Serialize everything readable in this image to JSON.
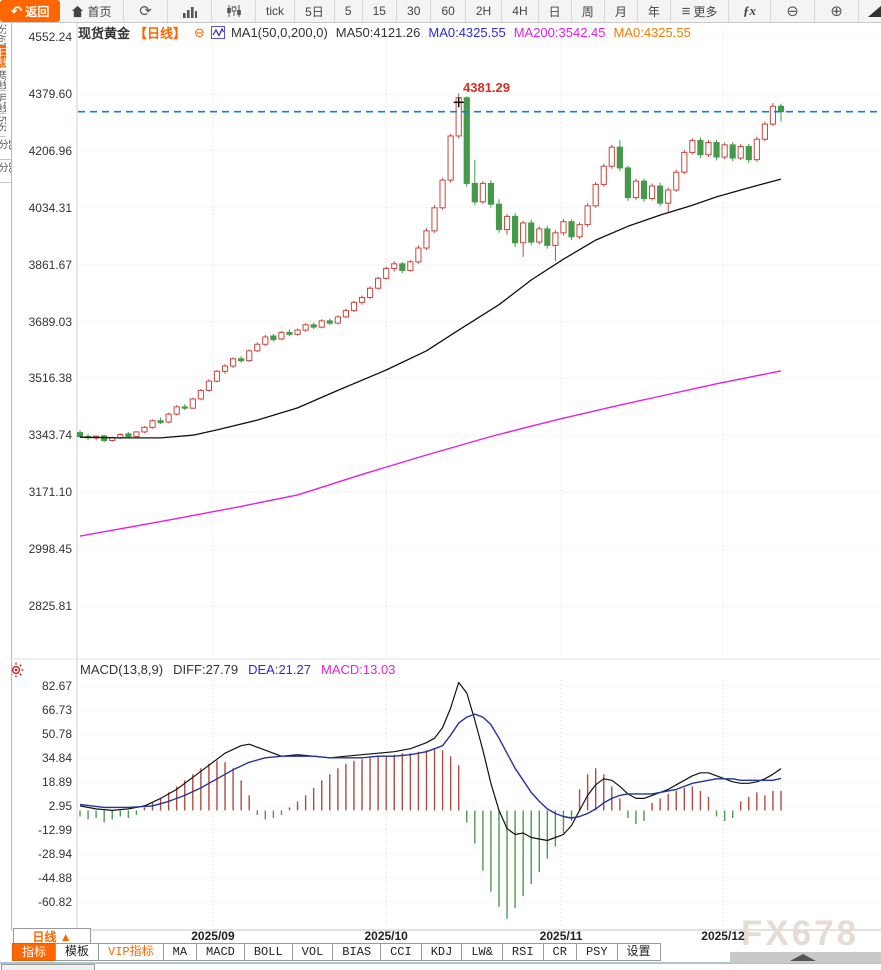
{
  "app": {
    "watermark": "FX678"
  },
  "toolbar": {
    "back": "返回",
    "home": "首页",
    "buttons": [
      "tick",
      "5日",
      "5",
      "15",
      "30",
      "60",
      "2H",
      "4H",
      "日",
      "周",
      "月",
      "年"
    ],
    "more": "更多",
    "fx": "ƒx",
    "zoom_out": "⊖",
    "zoom_in": "⊕"
  },
  "left_strip": {
    "items": [
      "分时",
      "日线",
      "周线",
      "月线",
      "5分",
      "15分",
      "30分"
    ],
    "selected_index": 1
  },
  "main_chart": {
    "legend": {
      "symbol": "现货黄金",
      "period": "【日线】",
      "eye": "⊖",
      "ma_title": "MA1(50,0,200,0)",
      "ma50": "MA50:4121.26",
      "ma0_blue": "MA0:4325.55",
      "ma200": "MA200:3542.45",
      "ma0_orange": "MA0:4325.55"
    },
    "peak_annotation": "4381.29",
    "y_ticks": [
      "4552.24",
      "4379.60",
      "4206.96",
      "4034.31",
      "3861.67",
      "3689.03",
      "3516.38",
      "3343.74",
      "3171.10",
      "2998.45",
      "2825.81"
    ]
  },
  "macd_panel": {
    "legend": {
      "title": "MACD(13,8,9)",
      "diff": "DIFF:27.79",
      "dea": "DEA:21.27",
      "macd": "MACD:13.03"
    },
    "y_ticks": [
      "82.67",
      "66.73",
      "50.78",
      "34.84",
      "18.89",
      "2.95",
      "-12.99",
      "-28.94",
      "-44.88",
      "-60.82"
    ]
  },
  "bottom": {
    "period_button": "日线 ▲",
    "tabs": [
      {
        "label": "指标",
        "style": "sel"
      },
      {
        "label": "模板",
        "style": ""
      },
      {
        "label": "VIP指标",
        "style": "vip"
      },
      {
        "label": "MA",
        "style": ""
      },
      {
        "label": "MACD",
        "style": ""
      },
      {
        "label": "BOLL",
        "style": ""
      },
      {
        "label": "VOL",
        "style": ""
      },
      {
        "label": "BIAS",
        "style": ""
      },
      {
        "label": "CCI",
        "style": ""
      },
      {
        "label": "KDJ",
        "style": ""
      },
      {
        "label": "LW&",
        "style": ""
      },
      {
        "label": "RSI",
        "style": ""
      },
      {
        "label": "CR",
        "style": ""
      },
      {
        "label": "PSY",
        "style": ""
      },
      {
        "label": "设置",
        "style": ""
      }
    ]
  },
  "colors": {
    "accent_orange": "#ff6600",
    "up": "#c8473d",
    "down": "#459a4a",
    "macd_up": "#b04b42",
    "macd_down": "#4d9950",
    "ma50": "#111111",
    "ma200": "#e320e3",
    "dea_blue": "#22349c",
    "current_price_blue": "#1779e0",
    "annotation_red": "#e02b20"
  },
  "chart_data": {
    "type": "candlestick",
    "title": "现货黄金 日线",
    "price_axis": {
      "min": 2825.81,
      "max": 4552.24,
      "ticks": [
        4552.24,
        4379.6,
        4206.96,
        4034.31,
        3861.67,
        3689.03,
        3516.38,
        3343.74,
        3171.1,
        2998.45,
        2825.81
      ]
    },
    "current_price": 4325.55,
    "peak": {
      "index": 47,
      "price": 4381.29
    },
    "x_months": [
      {
        "label": "2025/09",
        "index": 16.5
      },
      {
        "label": "2025/10",
        "index": 38.0
      },
      {
        "label": "2025/11",
        "index": 59.7
      },
      {
        "label": "2025/12",
        "index": 79.8
      }
    ],
    "candles": [
      [
        3352,
        3360,
        3336,
        3340
      ],
      [
        3340,
        3348,
        3330,
        3336
      ],
      [
        3336,
        3344,
        3328,
        3341
      ],
      [
        3342,
        3346,
        3322,
        3328
      ],
      [
        3328,
        3340,
        3324,
        3336
      ],
      [
        3336,
        3350,
        3332,
        3346
      ],
      [
        3348,
        3354,
        3336,
        3340
      ],
      [
        3340,
        3356,
        3338,
        3354
      ],
      [
        3354,
        3372,
        3350,
        3368
      ],
      [
        3368,
        3392,
        3364,
        3388
      ],
      [
        3388,
        3398,
        3378,
        3382
      ],
      [
        3384,
        3412,
        3380,
        3408
      ],
      [
        3408,
        3436,
        3404,
        3430
      ],
      [
        3430,
        3438,
        3420,
        3426
      ],
      [
        3426,
        3458,
        3424,
        3454
      ],
      [
        3454,
        3484,
        3450,
        3480
      ],
      [
        3480,
        3514,
        3476,
        3508
      ],
      [
        3508,
        3542,
        3504,
        3538
      ],
      [
        3538,
        3560,
        3530,
        3554
      ],
      [
        3554,
        3580,
        3548,
        3576
      ],
      [
        3576,
        3584,
        3564,
        3570
      ],
      [
        3570,
        3604,
        3566,
        3600
      ],
      [
        3600,
        3626,
        3596,
        3620
      ],
      [
        3620,
        3648,
        3614,
        3642
      ],
      [
        3645,
        3652,
        3628,
        3634
      ],
      [
        3636,
        3660,
        3632,
        3656
      ],
      [
        3656,
        3664,
        3644,
        3650
      ],
      [
        3650,
        3668,
        3646,
        3663
      ],
      [
        3663,
        3684,
        3658,
        3679
      ],
      [
        3679,
        3686,
        3666,
        3672
      ],
      [
        3672,
        3696,
        3668,
        3691
      ],
      [
        3691,
        3698,
        3678,
        3684
      ],
      [
        3684,
        3708,
        3680,
        3703
      ],
      [
        3703,
        3728,
        3699,
        3722
      ],
      [
        3722,
        3752,
        3718,
        3747
      ],
      [
        3747,
        3768,
        3740,
        3762
      ],
      [
        3762,
        3796,
        3758,
        3790
      ],
      [
        3790,
        3826,
        3786,
        3820
      ],
      [
        3820,
        3856,
        3816,
        3850
      ],
      [
        3850,
        3872,
        3840,
        3864
      ],
      [
        3864,
        3870,
        3836,
        3844
      ],
      [
        3844,
        3876,
        3840,
        3870
      ],
      [
        3870,
        3920,
        3864,
        3912
      ],
      [
        3912,
        3972,
        3906,
        3964
      ],
      [
        3964,
        4042,
        3958,
        4034
      ],
      [
        4034,
        4125,
        4028,
        4118
      ],
      [
        4118,
        4258,
        4110,
        4252
      ],
      [
        4252,
        4381.29,
        4244,
        4368
      ],
      [
        4368,
        4372,
        4098,
        4108
      ],
      [
        4108,
        4180,
        4042,
        4052
      ],
      [
        4052,
        4115,
        4046,
        4108
      ],
      [
        4108,
        4118,
        4035,
        4045
      ],
      [
        4045,
        4060,
        3958,
        3968
      ],
      [
        3968,
        4015,
        3952,
        4008
      ],
      [
        4008,
        4018,
        3915,
        3928
      ],
      [
        3928,
        3995,
        3885,
        3988
      ],
      [
        3988,
        3998,
        3920,
        3930
      ],
      [
        3930,
        3978,
        3922,
        3970
      ],
      [
        3970,
        3980,
        3910,
        3920
      ],
      [
        3920,
        3965,
        3872,
        3958
      ],
      [
        3958,
        4000,
        3950,
        3992
      ],
      [
        3992,
        3999,
        3936,
        3946
      ],
      [
        3946,
        3990,
        3940,
        3983
      ],
      [
        3983,
        4048,
        3976,
        4040
      ],
      [
        4040,
        4112,
        4034,
        4105
      ],
      [
        4105,
        4168,
        4098,
        4160
      ],
      [
        4160,
        4225,
        4152,
        4218
      ],
      [
        4218,
        4240,
        4145,
        4155
      ],
      [
        4155,
        4162,
        4055,
        4065
      ],
      [
        4065,
        4122,
        4058,
        4115
      ],
      [
        4115,
        4123,
        4052,
        4062
      ],
      [
        4062,
        4108,
        4056,
        4100
      ],
      [
        4100,
        4110,
        4038,
        4048
      ],
      [
        4048,
        4096,
        4018,
        4088
      ],
      [
        4088,
        4150,
        4082,
        4142
      ],
      [
        4142,
        4210,
        4136,
        4202
      ],
      [
        4202,
        4245,
        4196,
        4238
      ],
      [
        4238,
        4248,
        4185,
        4195
      ],
      [
        4195,
        4240,
        4188,
        4232
      ],
      [
        4232,
        4240,
        4178,
        4188
      ],
      [
        4188,
        4232,
        4182,
        4225
      ],
      [
        4225,
        4233,
        4175,
        4185
      ],
      [
        4185,
        4228,
        4179,
        4220
      ],
      [
        4220,
        4228,
        4170,
        4180
      ],
      [
        4180,
        4250,
        4174,
        4242
      ],
      [
        4242,
        4295,
        4236,
        4288
      ],
      [
        4288,
        4352,
        4282,
        4342
      ],
      [
        4342,
        4350,
        4295,
        4325.55
      ]
    ],
    "ma50_points": [
      [
        0,
        3338
      ],
      [
        5,
        3336
      ],
      [
        10,
        3336
      ],
      [
        14,
        3344
      ],
      [
        17,
        3360
      ],
      [
        22,
        3390
      ],
      [
        27,
        3427
      ],
      [
        32,
        3480
      ],
      [
        38,
        3542
      ],
      [
        43,
        3600
      ],
      [
        47,
        3663
      ],
      [
        52,
        3740
      ],
      [
        56,
        3815
      ],
      [
        60,
        3878
      ],
      [
        64,
        3936
      ],
      [
        68,
        3978
      ],
      [
        72,
        4012
      ],
      [
        76,
        4042
      ],
      [
        79,
        4067
      ],
      [
        83,
        4095
      ],
      [
        87,
        4121
      ]
    ],
    "ma200_points": [
      [
        0,
        3038
      ],
      [
        10,
        3082
      ],
      [
        20,
        3128
      ],
      [
        27,
        3163
      ],
      [
        35,
        3225
      ],
      [
        43,
        3284
      ],
      [
        51,
        3340
      ],
      [
        59,
        3390
      ],
      [
        66,
        3430
      ],
      [
        71,
        3457
      ],
      [
        79,
        3500
      ],
      [
        87,
        3539
      ]
    ],
    "macd": {
      "values": {
        "diff": 27.79,
        "dea": 21.27,
        "macd": 13.03
      },
      "axis": {
        "min": -60.82,
        "max": 82.67
      },
      "hist": [
        -4,
        -6,
        -5,
        -8,
        -6,
        -4,
        -5,
        -3,
        2,
        5,
        8,
        12,
        16,
        20,
        24,
        28,
        31,
        33,
        32,
        28,
        20,
        10,
        -3,
        -6,
        -5,
        -3,
        2,
        6,
        10,
        15,
        20,
        24,
        28,
        31,
        33,
        34,
        35,
        36,
        36,
        37,
        38,
        38,
        39,
        40,
        41,
        40,
        36,
        30,
        -8,
        -22,
        -40,
        -54,
        -64,
        -72,
        -65,
        -57,
        -49,
        -41,
        -32,
        -24,
        -15,
        -7,
        14,
        24,
        28,
        24,
        16,
        8,
        -5,
        -9,
        -7,
        5,
        8,
        11,
        13,
        15,
        16,
        13,
        9,
        -4,
        -7,
        -5,
        6,
        9,
        12,
        10,
        13,
        13.03
      ],
      "diff_points": [
        [
          0,
          3
        ],
        [
          2,
          1
        ],
        [
          4,
          0
        ],
        [
          6,
          1
        ],
        [
          8,
          3
        ],
        [
          10,
          8
        ],
        [
          12,
          14
        ],
        [
          14,
          22
        ],
        [
          16,
          30
        ],
        [
          18,
          38
        ],
        [
          20,
          43
        ],
        [
          21,
          44
        ],
        [
          23,
          40
        ],
        [
          25,
          36
        ],
        [
          27,
          37
        ],
        [
          29,
          36
        ],
        [
          31,
          35
        ],
        [
          33,
          36
        ],
        [
          35,
          37
        ],
        [
          37,
          38
        ],
        [
          39,
          39
        ],
        [
          41,
          41
        ],
        [
          43,
          45
        ],
        [
          44,
          48
        ],
        [
          45,
          55
        ],
        [
          46,
          68
        ],
        [
          47,
          85
        ],
        [
          48,
          78
        ],
        [
          49,
          60
        ],
        [
          50,
          40
        ],
        [
          51,
          18
        ],
        [
          52,
          0
        ],
        [
          53,
          -12
        ],
        [
          54,
          -16
        ],
        [
          55,
          -15
        ],
        [
          56,
          -18
        ],
        [
          57,
          -19
        ],
        [
          58,
          -20
        ],
        [
          59,
          -18
        ],
        [
          60,
          -16
        ],
        [
          61,
          -10
        ],
        [
          62,
          0
        ],
        [
          63,
          10
        ],
        [
          64,
          17
        ],
        [
          65,
          21
        ],
        [
          66,
          20
        ],
        [
          67,
          16
        ],
        [
          68,
          11
        ],
        [
          69,
          8
        ],
        [
          70,
          8
        ],
        [
          71,
          10
        ],
        [
          72,
          12
        ],
        [
          73,
          14
        ],
        [
          74,
          17
        ],
        [
          75,
          20
        ],
        [
          76,
          23
        ],
        [
          77,
          25
        ],
        [
          78,
          25
        ],
        [
          79,
          23
        ],
        [
          80,
          21
        ],
        [
          81,
          19
        ],
        [
          82,
          18
        ],
        [
          83,
          18
        ],
        [
          84,
          19
        ],
        [
          85,
          21
        ],
        [
          86,
          24
        ],
        [
          87,
          27.79
        ]
      ],
      "dea_points": [
        [
          0,
          4
        ],
        [
          3,
          2
        ],
        [
          6,
          2
        ],
        [
          9,
          3
        ],
        [
          11,
          6
        ],
        [
          13,
          10
        ],
        [
          15,
          15
        ],
        [
          17,
          21
        ],
        [
          19,
          27
        ],
        [
          21,
          32
        ],
        [
          23,
          35
        ],
        [
          25,
          36
        ],
        [
          27,
          36
        ],
        [
          29,
          36
        ],
        [
          31,
          35
        ],
        [
          33,
          35
        ],
        [
          35,
          35
        ],
        [
          37,
          36
        ],
        [
          39,
          36
        ],
        [
          41,
          37
        ],
        [
          43,
          39
        ],
        [
          45,
          43
        ],
        [
          46,
          50
        ],
        [
          47,
          58
        ],
        [
          48,
          62
        ],
        [
          49,
          64
        ],
        [
          50,
          62
        ],
        [
          51,
          57
        ],
        [
          52,
          48
        ],
        [
          53,
          38
        ],
        [
          54,
          28
        ],
        [
          55,
          20
        ],
        [
          56,
          12
        ],
        [
          57,
          6
        ],
        [
          58,
          1
        ],
        [
          59,
          -2
        ],
        [
          60,
          -4
        ],
        [
          61,
          -5
        ],
        [
          62,
          -4
        ],
        [
          63,
          -2
        ],
        [
          64,
          1
        ],
        [
          65,
          5
        ],
        [
          66,
          8
        ],
        [
          67,
          10
        ],
        [
          68,
          11
        ],
        [
          69,
          11
        ],
        [
          70,
          11
        ],
        [
          71,
          11
        ],
        [
          72,
          12
        ],
        [
          73,
          13
        ],
        [
          74,
          14
        ],
        [
          75,
          16
        ],
        [
          76,
          18
        ],
        [
          77,
          19
        ],
        [
          78,
          20
        ],
        [
          79,
          21
        ],
        [
          80,
          21
        ],
        [
          81,
          21
        ],
        [
          82,
          20
        ],
        [
          83,
          20
        ],
        [
          84,
          20
        ],
        [
          85,
          20
        ],
        [
          86,
          20
        ],
        [
          87,
          21.27
        ]
      ]
    }
  }
}
